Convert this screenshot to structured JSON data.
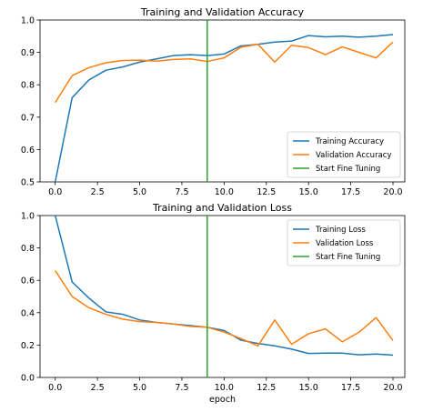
{
  "chart_data": [
    {
      "type": "line",
      "title": "Training and Validation Accuracy",
      "xlabel": "",
      "ylabel": "",
      "xlim": [
        -0.9,
        20.7
      ],
      "ylim": [
        0.5,
        1.0
      ],
      "xticks": [
        0.0,
        2.5,
        5.0,
        7.5,
        10.0,
        12.5,
        15.0,
        17.5,
        20.0
      ],
      "xtick_labels": [
        "0.0",
        "2.5",
        "5.0",
        "7.5",
        "10.0",
        "12.5",
        "15.0",
        "17.5",
        "20.0"
      ],
      "yticks": [
        0.5,
        0.6,
        0.7,
        0.8,
        0.9,
        1.0
      ],
      "ytick_labels": [
        "0.5",
        "0.6",
        "0.7",
        "0.8",
        "0.9",
        "1.0"
      ],
      "grid": false,
      "legend_position": "lower-right",
      "x": [
        0,
        1,
        2,
        3,
        4,
        5,
        6,
        7,
        8,
        9,
        10,
        11,
        12,
        13,
        14,
        15,
        16,
        17,
        18,
        19,
        20
      ],
      "series": [
        {
          "name": "Training Accuracy",
          "color": "#1f77b4",
          "values": [
            0.5,
            0.76,
            0.815,
            0.845,
            0.855,
            0.87,
            0.88,
            0.89,
            0.893,
            0.89,
            0.895,
            0.92,
            0.925,
            0.932,
            0.935,
            0.952,
            0.948,
            0.95,
            0.947,
            0.95,
            0.955
          ]
        },
        {
          "name": "Validation Accuracy",
          "color": "#ff7f0e",
          "values": [
            0.745,
            0.828,
            0.853,
            0.868,
            0.875,
            0.876,
            0.873,
            0.878,
            0.88,
            0.872,
            0.883,
            0.916,
            0.925,
            0.87,
            0.922,
            0.915,
            0.893,
            0.917,
            0.9,
            0.883,
            0.932
          ]
        }
      ],
      "vlines": [
        {
          "name": "Start Fine Tuning",
          "color": "#2ca02c",
          "x": 9
        }
      ]
    },
    {
      "type": "line",
      "title": "Training and Validation Loss",
      "xlabel": "epoch",
      "ylabel": "",
      "xlim": [
        -0.9,
        20.7
      ],
      "ylim": [
        0.0,
        1.0
      ],
      "xticks": [
        0.0,
        2.5,
        5.0,
        7.5,
        10.0,
        12.5,
        15.0,
        17.5,
        20.0
      ],
      "xtick_labels": [
        "0.0",
        "2.5",
        "5.0",
        "7.5",
        "10.0",
        "12.5",
        "15.0",
        "17.5",
        "20.0"
      ],
      "yticks": [
        0.0,
        0.2,
        0.4,
        0.6,
        0.8,
        1.0
      ],
      "ytick_labels": [
        "0.0",
        "0.2",
        "0.4",
        "0.6",
        "0.8",
        "1.0"
      ],
      "grid": false,
      "legend_position": "upper-right",
      "x": [
        0,
        1,
        2,
        3,
        4,
        5,
        6,
        7,
        8,
        9,
        10,
        11,
        12,
        13,
        14,
        15,
        16,
        17,
        18,
        19,
        20
      ],
      "series": [
        {
          "name": "Training Loss",
          "color": "#1f77b4",
          "values": [
            1.0,
            0.59,
            0.49,
            0.405,
            0.39,
            0.355,
            0.34,
            0.33,
            0.32,
            0.31,
            0.29,
            0.23,
            0.21,
            0.195,
            0.175,
            0.148,
            0.15,
            0.15,
            0.14,
            0.145,
            0.138
          ]
        },
        {
          "name": "Validation Loss",
          "color": "#ff7f0e",
          "values": [
            0.66,
            0.5,
            0.43,
            0.39,
            0.36,
            0.345,
            0.34,
            0.33,
            0.315,
            0.31,
            0.28,
            0.24,
            0.195,
            0.355,
            0.205,
            0.27,
            0.3,
            0.22,
            0.28,
            0.37,
            0.228
          ]
        }
      ],
      "vlines": [
        {
          "name": "Start Fine Tuning",
          "color": "#2ca02c",
          "x": 9
        }
      ]
    }
  ]
}
